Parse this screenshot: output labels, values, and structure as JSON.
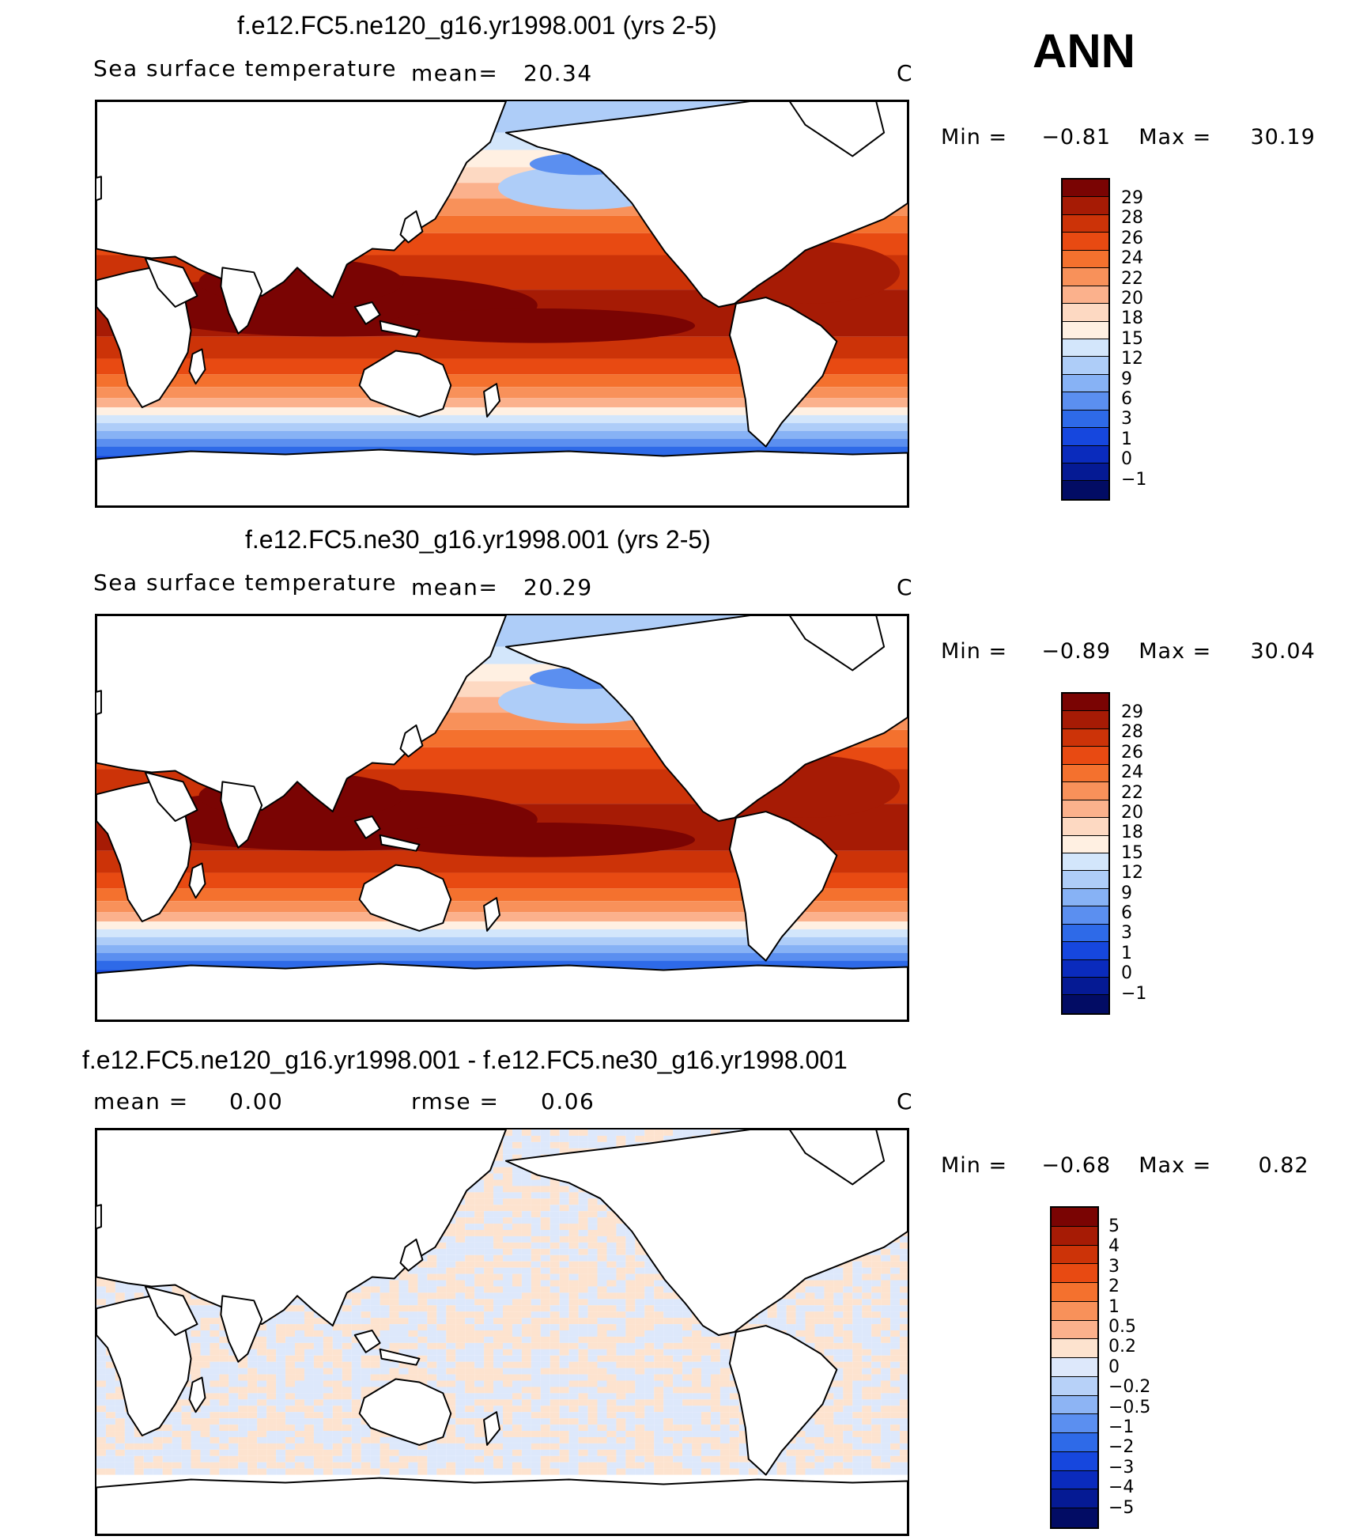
{
  "season": "ANN",
  "panels": [
    {
      "title": "f.e12.FC5.ne120_g16.yr1998.001 (yrs 2-5)",
      "variable": "Sea surface temperature",
      "stat1_label": "mean=",
      "stat1_value": "20.34",
      "units": "C",
      "min_label": "Min =",
      "min_value": "−0.81",
      "max_label": "Max =",
      "max_value": "30.19",
      "colorbar_labels": [
        "29",
        "28",
        "26",
        "24",
        "22",
        "20",
        "18",
        "15",
        "12",
        "9",
        "6",
        "3",
        "1",
        "0",
        "−1"
      ]
    },
    {
      "title": "f.e12.FC5.ne30_g16.yr1998.001 (yrs 2-5)",
      "variable": "Sea surface temperature",
      "stat1_label": "mean=",
      "stat1_value": "20.29",
      "units": "C",
      "min_label": "Min =",
      "min_value": "−0.89",
      "max_label": "Max =",
      "max_value": "30.04",
      "colorbar_labels": [
        "29",
        "28",
        "26",
        "24",
        "22",
        "20",
        "18",
        "15",
        "12",
        "9",
        "6",
        "3",
        "1",
        "0",
        "−1"
      ]
    },
    {
      "title": "f.e12.FC5.ne120_g16.yr1998.001 - f.e12.FC5.ne30_g16.yr1998.001",
      "stat1_label": "mean =",
      "stat1_value": "0.00",
      "stat2_label": "rmse =",
      "stat2_value": "0.06",
      "units": "C",
      "min_label": "Min =",
      "min_value": "−0.68",
      "max_label": "Max =",
      "max_value": "0.82",
      "colorbar_labels": [
        "5",
        "4",
        "3",
        "2",
        "1",
        "0.5",
        "0.2",
        "0",
        "−0.2",
        "−0.5",
        "−1",
        "−2",
        "−3",
        "−4",
        "−5"
      ]
    }
  ],
  "colors": {
    "sst_scale": [
      "#7a0403",
      "#a61b05",
      "#cc3308",
      "#e84a12",
      "#f4712e",
      "#f8915a",
      "#fbb18c",
      "#fdd9c2",
      "#fff0e2",
      "#d3e6fb",
      "#aecdf8",
      "#87b2f5",
      "#5b8ff0",
      "#2e6ae8",
      "#1647de",
      "#0a2bbd",
      "#051a94",
      "#020c64"
    ],
    "diff_scale": [
      "#7a0403",
      "#a61b05",
      "#cc3308",
      "#e84a12",
      "#f4712e",
      "#f8915a",
      "#fbb18c",
      "#fde3cf",
      "#dde8fb",
      "#b7d1f8",
      "#8db4f4",
      "#5b8ff0",
      "#2e6ae8",
      "#1647de",
      "#0a2bbd",
      "#051a94",
      "#020c64"
    ]
  }
}
